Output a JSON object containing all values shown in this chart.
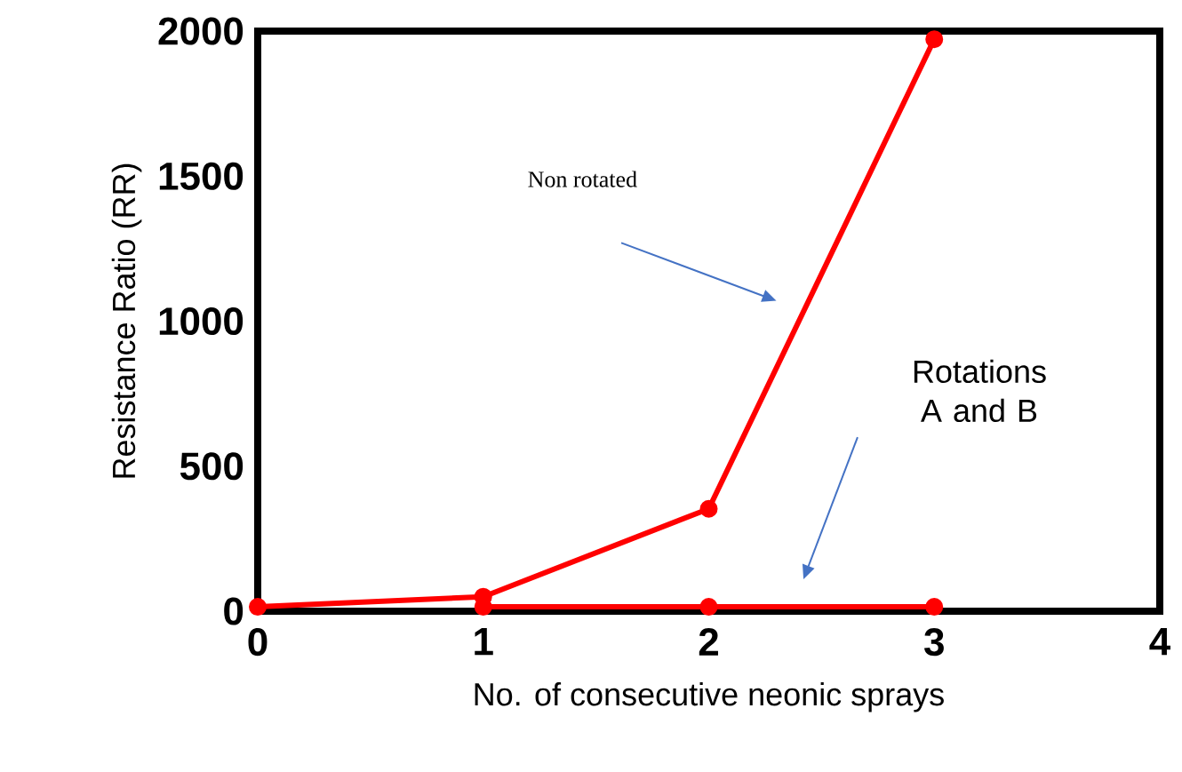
{
  "chart_data": {
    "type": "line",
    "xlabel": "No. of consecutive neonic sprays",
    "ylabel": "Resistance Ratio (RR)",
    "x": [
      0,
      1,
      2,
      3
    ],
    "series": [
      {
        "color": "#ff0000",
        "values": [
          15,
          50,
          353,
          1972
        ]
      },
      {
        "color": "#ff0000",
        "values": [
          null,
          15,
          15,
          15
        ]
      }
    ],
    "xlim": [
      0,
      4
    ],
    "xticks": [
      0,
      1,
      2,
      3,
      4
    ],
    "ylim": [
      0,
      2000
    ],
    "yticks": [
      0,
      500,
      1000,
      1500,
      2000
    ],
    "marker": "circle",
    "line_style": "solid",
    "annotations": [
      "Non rotated",
      "Rotations A and B"
    ]
  }
}
